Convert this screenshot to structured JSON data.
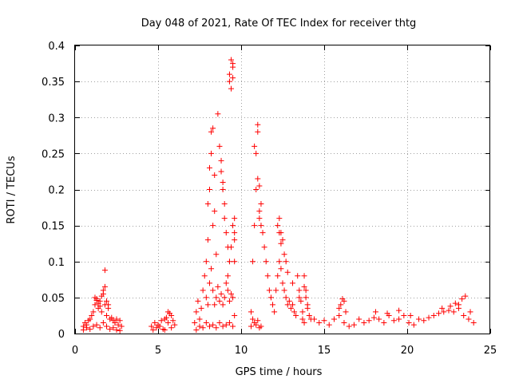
{
  "chart_data": {
    "type": "scatter",
    "title": "Day 048 of 2021, Rate Of TEC Index for receiver thtg",
    "xlabel": "GPS time / hours",
    "ylabel": "ROTI / TECUs",
    "xlim": [
      0,
      25
    ],
    "ylim": [
      0,
      0.4
    ],
    "xticks": [
      0,
      5,
      10,
      15,
      20,
      25
    ],
    "xtick_labels": [
      "0",
      "5",
      "10",
      "15",
      "20",
      "25"
    ],
    "yticks": [
      0,
      0.05,
      0.1,
      0.15,
      0.2,
      0.25,
      0.3,
      0.35,
      0.4
    ],
    "ytick_labels": [
      "0",
      "0.05",
      "0.1",
      "0.15",
      "0.2",
      "0.25",
      "0.3",
      "0.35",
      "0.4"
    ],
    "grid": true,
    "marker": "+",
    "marker_color": "#ff0000",
    "series": [
      {
        "x": [
          0.5,
          0.6,
          0.7,
          0.8,
          0.9,
          1.0,
          1.1,
          1.2,
          1.3,
          1.4,
          1.5,
          1.6,
          1.7,
          1.8,
          1.9,
          2.0,
          2.1,
          2.2,
          2.3,
          2.4,
          2.5,
          2.6,
          2.7,
          2.8,
          0.5,
          0.7,
          0.9,
          1.1,
          1.3,
          1.5,
          1.7,
          1.9,
          2.1,
          2.3,
          2.5,
          2.7,
          1.2,
          1.3,
          1.4,
          1.5,
          1.6,
          1.7,
          1.8,
          1.8,
          1.9,
          2.0,
          4.6,
          4.8,
          5.0,
          5.2,
          5.4,
          5.6,
          5.8,
          6.0,
          4.7,
          4.9,
          5.1,
          5.3,
          5.5,
          5.7,
          5.9,
          5.4,
          5.6,
          5.8,
          7.2,
          7.3,
          7.4,
          7.5,
          7.6,
          7.7,
          7.8,
          7.9,
          8.0,
          8.1,
          8.2,
          8.3,
          8.4,
          8.5,
          8.6,
          8.7,
          8.8,
          8.9,
          9.0,
          9.1,
          9.2,
          9.3,
          9.4,
          9.5,
          9.6,
          7.3,
          7.5,
          7.7,
          7.9,
          8.1,
          8.3,
          8.5,
          8.7,
          8.9,
          9.1,
          9.3,
          9.5,
          7.9,
          8.0,
          8.0,
          8.1,
          8.1,
          8.2,
          8.2,
          8.3,
          8.3,
          8.4,
          8.4,
          8.5,
          8.6,
          8.7,
          8.8,
          8.8,
          8.9,
          8.9,
          9.0,
          9.0,
          9.1,
          9.2,
          9.3,
          9.3,
          9.4,
          9.4,
          9.5,
          9.5,
          9.5,
          9.6,
          9.6,
          9.6,
          9.2,
          9.3,
          9.4,
          9.5,
          9.6,
          10.6,
          10.7,
          10.8,
          10.9,
          11.0,
          11.1,
          11.2,
          11.3,
          11.4,
          11.5,
          11.6,
          11.7,
          11.8,
          11.9,
          12.0,
          10.6,
          10.7,
          10.8,
          10.9,
          11.0,
          11.1,
          11.2,
          10.8,
          10.9,
          11.0,
          11.0,
          11.1,
          11.1,
          11.2,
          12.1,
          12.2,
          12.3,
          12.4,
          12.5,
          12.6,
          12.7,
          12.8,
          12.9,
          13.0,
          13.1,
          13.2,
          13.3,
          13.4,
          13.5,
          13.6,
          13.7,
          13.8,
          13.9,
          14.0,
          14.1,
          14.2,
          12.3,
          12.4,
          12.5,
          12.6,
          12.7,
          12.8,
          13.1,
          13.5,
          13.8,
          13.9,
          14.0,
          12.2,
          12.3,
          12.4,
          13.7,
          13.8,
          14.4,
          14.7,
          15.0,
          15.3,
          15.6,
          15.9,
          16.2,
          16.5,
          16.8,
          17.1,
          17.4,
          17.7,
          18.0,
          18.3,
          18.6,
          18.9,
          19.2,
          19.5,
          19.8,
          20.1,
          20.4,
          20.7,
          21.0,
          21.3,
          21.6,
          21.9,
          22.2,
          22.5,
          22.8,
          23.1,
          23.4,
          23.7,
          24.0,
          15.9,
          16.0,
          16.1,
          16.2,
          16.3,
          18.1,
          18.8,
          19.5,
          20.2,
          22.1,
          22.6,
          22.9,
          23.1,
          23.3,
          23.5,
          23.8
        ],
        "y": [
          0.01,
          0.015,
          0.012,
          0.018,
          0.02,
          0.025,
          0.03,
          0.04,
          0.048,
          0.035,
          0.045,
          0.03,
          0.055,
          0.04,
          0.025,
          0.035,
          0.02,
          0.022,
          0.018,
          0.015,
          0.02,
          0.012,
          0.018,
          0.01,
          0.005,
          0.008,
          0.006,
          0.01,
          0.012,
          0.008,
          0.015,
          0.01,
          0.006,
          0.008,
          0.005,
          0.004,
          0.05,
          0.046,
          0.042,
          0.038,
          0.052,
          0.06,
          0.065,
          0.088,
          0.045,
          0.04,
          0.01,
          0.015,
          0.012,
          0.018,
          0.02,
          0.015,
          0.025,
          0.012,
          0.005,
          0.008,
          0.01,
          0.006,
          0.022,
          0.028,
          0.018,
          0.005,
          0.03,
          0.008,
          0.015,
          0.03,
          0.045,
          0.02,
          0.035,
          0.06,
          0.08,
          0.05,
          0.04,
          0.07,
          0.09,
          0.06,
          0.04,
          0.05,
          0.065,
          0.045,
          0.055,
          0.04,
          0.05,
          0.07,
          0.06,
          0.045,
          0.055,
          0.05,
          0.025,
          0.005,
          0.01,
          0.008,
          0.015,
          0.01,
          0.012,
          0.008,
          0.015,
          0.01,
          0.012,
          0.015,
          0.01,
          0.1,
          0.13,
          0.18,
          0.2,
          0.23,
          0.25,
          0.28,
          0.285,
          0.15,
          0.17,
          0.22,
          0.11,
          0.305,
          0.26,
          0.24,
          0.225,
          0.2,
          0.21,
          0.18,
          0.16,
          0.14,
          0.12,
          0.35,
          0.36,
          0.34,
          0.38,
          0.375,
          0.37,
          0.355,
          0.16,
          0.14,
          0.1,
          0.08,
          0.1,
          0.12,
          0.15,
          0.13,
          0.03,
          0.1,
          0.15,
          0.2,
          0.215,
          0.205,
          0.18,
          0.14,
          0.12,
          0.1,
          0.08,
          0.06,
          0.05,
          0.04,
          0.03,
          0.01,
          0.02,
          0.015,
          0.012,
          0.018,
          0.008,
          0.01,
          0.26,
          0.25,
          0.29,
          0.28,
          0.17,
          0.16,
          0.15,
          0.06,
          0.08,
          0.1,
          0.09,
          0.07,
          0.06,
          0.05,
          0.04,
          0.045,
          0.035,
          0.04,
          0.03,
          0.025,
          0.08,
          0.06,
          0.045,
          0.03,
          0.065,
          0.05,
          0.04,
          0.025,
          0.02,
          0.16,
          0.14,
          0.13,
          0.11,
          0.1,
          0.085,
          0.07,
          0.05,
          0.08,
          0.06,
          0.035,
          0.15,
          0.14,
          0.125,
          0.02,
          0.015,
          0.02,
          0.015,
          0.018,
          0.012,
          0.02,
          0.025,
          0.015,
          0.01,
          0.012,
          0.02,
          0.015,
          0.018,
          0.022,
          0.02,
          0.015,
          0.025,
          0.018,
          0.02,
          0.025,
          0.015,
          0.012,
          0.02,
          0.018,
          0.022,
          0.025,
          0.028,
          0.03,
          0.032,
          0.03,
          0.035,
          0.025,
          0.02,
          0.015,
          0.035,
          0.04,
          0.048,
          0.045,
          0.03,
          0.03,
          0.028,
          0.032,
          0.025,
          0.035,
          0.038,
          0.042,
          0.04,
          0.048,
          0.052,
          0.03
        ]
      }
    ]
  }
}
